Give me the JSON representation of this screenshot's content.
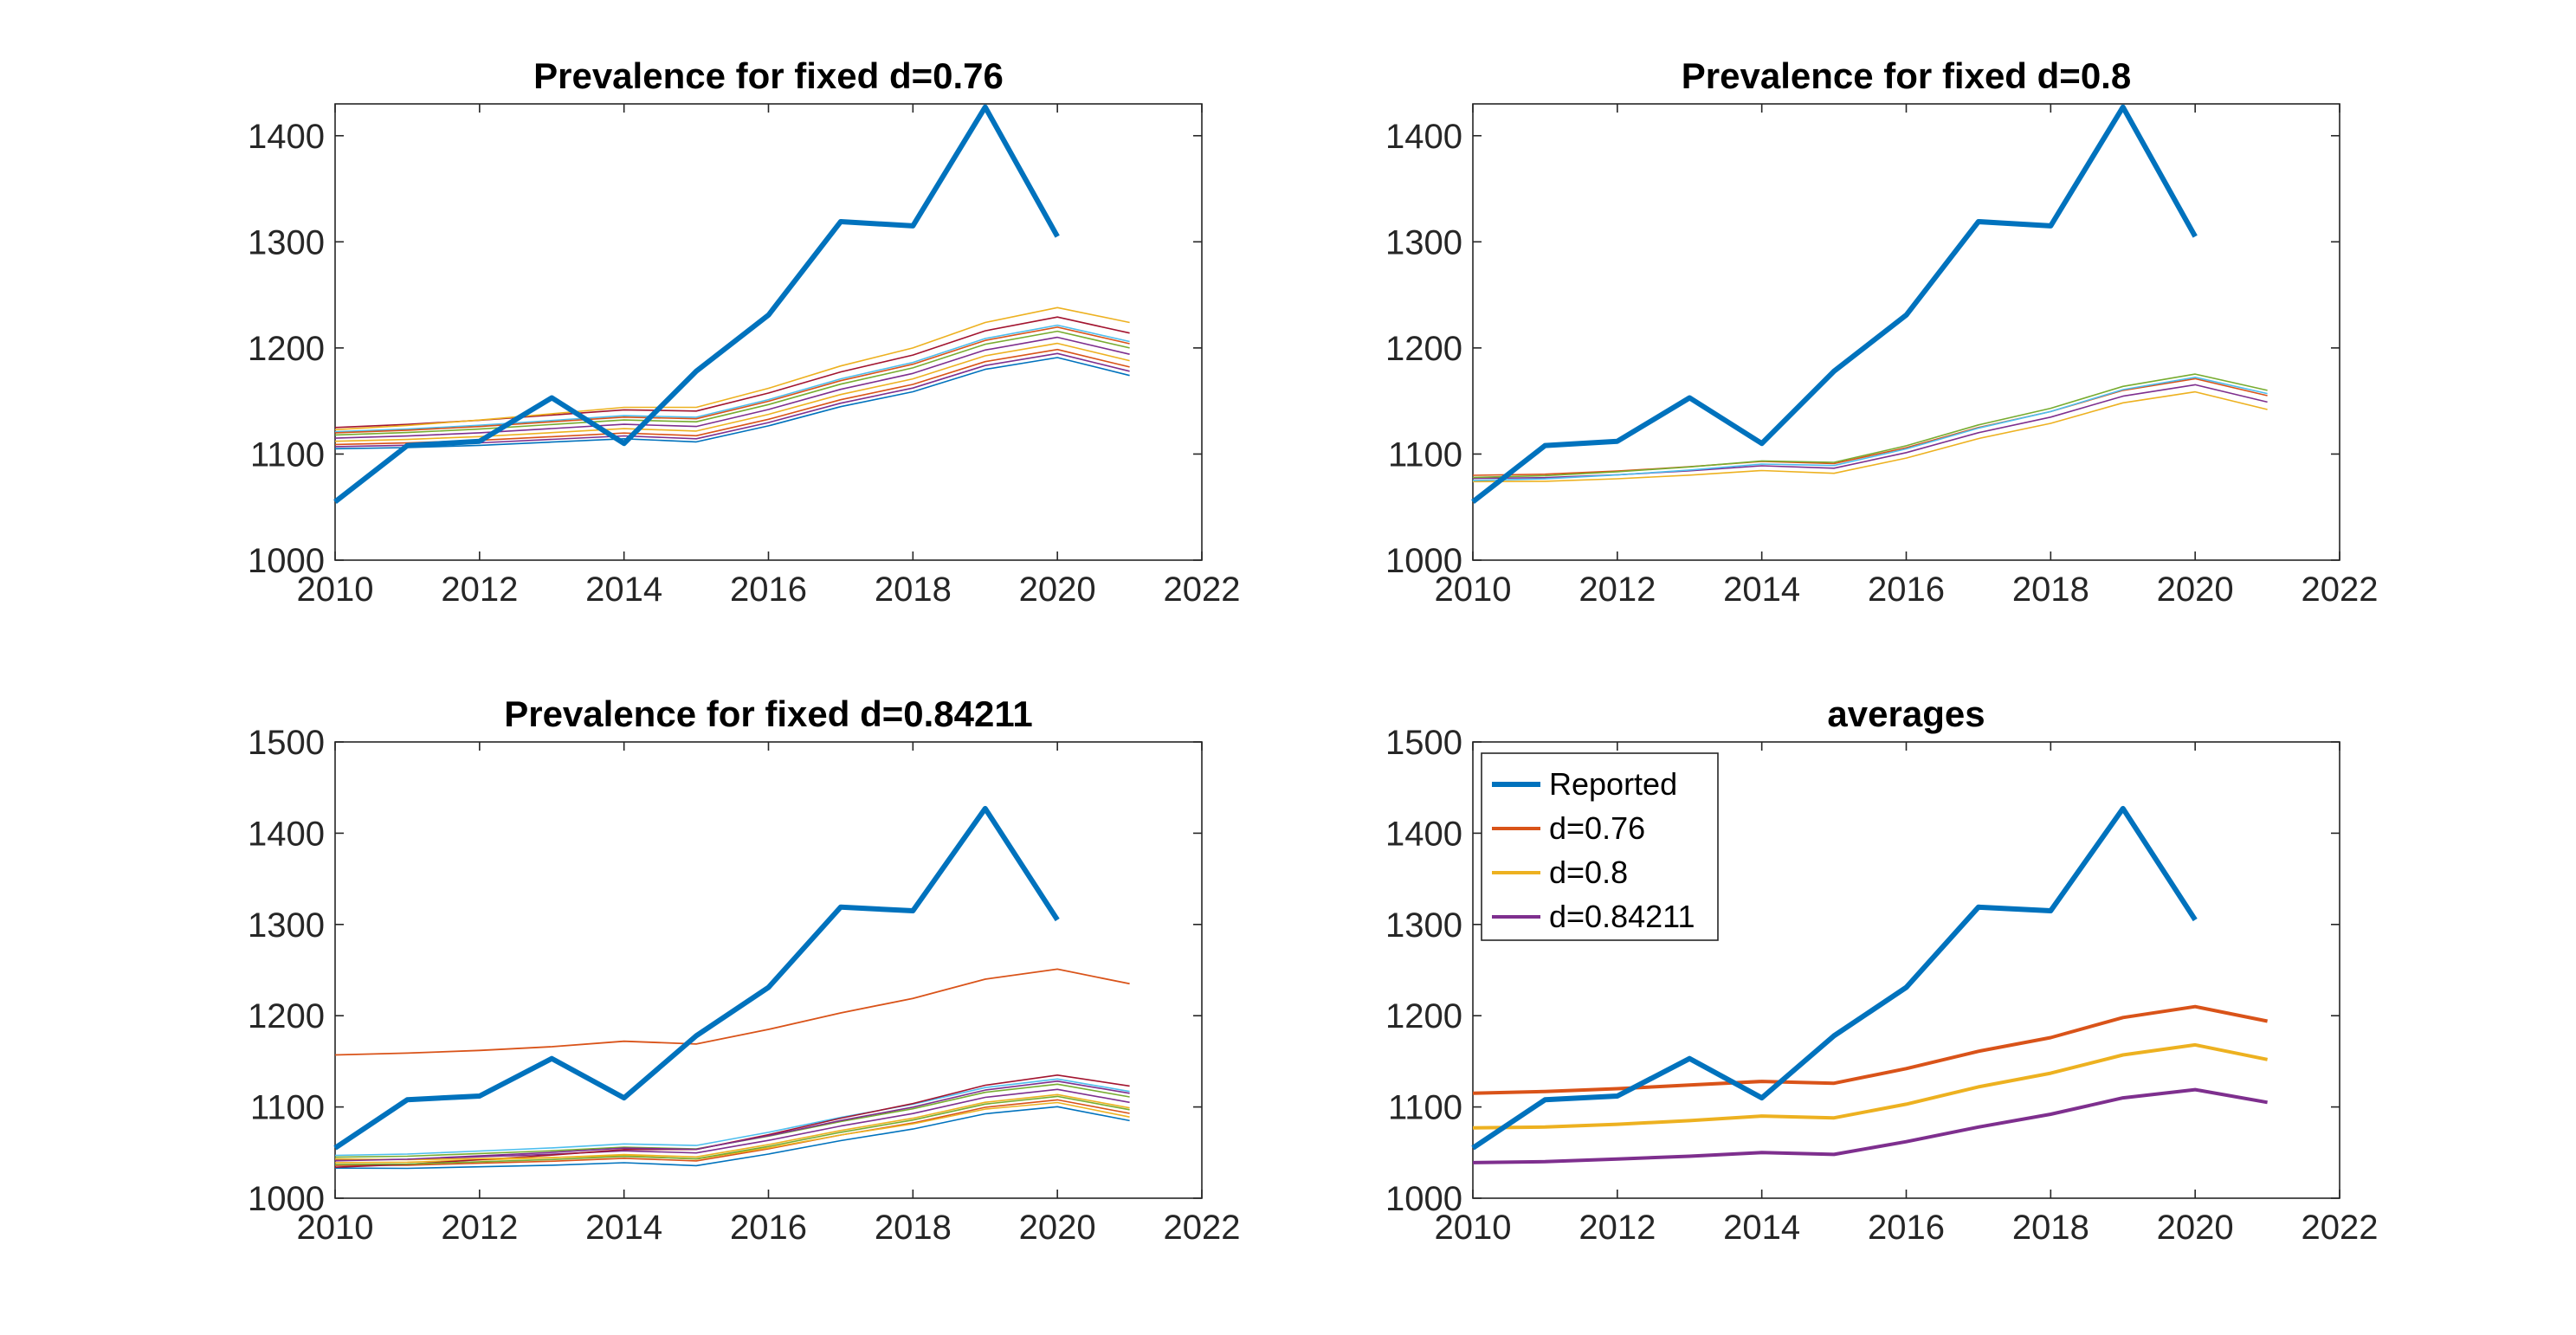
{
  "chart_data": [
    {
      "type": "line",
      "title": "Prevalence for fixed d=0.76",
      "xlim": [
        2010,
        2022
      ],
      "ylim": [
        1000,
        1430
      ],
      "xticks": [
        2010,
        2012,
        2014,
        2016,
        2018,
        2020,
        2022
      ],
      "yticks": [
        1000,
        1100,
        1200,
        1300,
        1400
      ],
      "grid": false,
      "reported": {
        "name": "Reported",
        "color": "#0072BD",
        "x": [
          2010,
          2011,
          2012,
          2013,
          2014,
          2015,
          2016,
          2017,
          2018,
          2019,
          2020
        ],
        "y": [
          1055,
          1108,
          1112,
          1153,
          1110,
          1178,
          1231,
          1319,
          1315,
          1427,
          1305
        ]
      },
      "ensemble": {
        "x": [
          2010,
          2011,
          2012,
          2013,
          2014,
          2015,
          2016,
          2017,
          2018,
          2019,
          2020,
          2021
        ],
        "base": [
          1115,
          1117,
          1120,
          1124,
          1128,
          1126,
          1142,
          1161,
          1176,
          1198,
          1210,
          1194
        ],
        "offsets_start": [
          -10,
          -6,
          -3,
          0,
          3,
          6,
          10,
          8,
          -8,
          5
        ],
        "offsets_end": [
          -20,
          -12,
          -6,
          0,
          6,
          12,
          20,
          30,
          -16,
          10
        ],
        "colors": [
          "#0072BD",
          "#D95319",
          "#EDB120",
          "#7E2F8E",
          "#77AC30",
          "#4DBEEE",
          "#A2142F",
          "#EDB120",
          "#7E2F8E",
          "#D95319"
        ]
      }
    },
    {
      "type": "line",
      "title": "Prevalence for fixed d=0.8",
      "xlim": [
        2010,
        2022
      ],
      "ylim": [
        1000,
        1430
      ],
      "xticks": [
        2010,
        2012,
        2014,
        2016,
        2018,
        2020,
        2022
      ],
      "yticks": [
        1000,
        1100,
        1200,
        1300,
        1400
      ],
      "grid": false,
      "reported": {
        "name": "Reported",
        "color": "#0072BD",
        "x": [
          2010,
          2011,
          2012,
          2013,
          2014,
          2015,
          2016,
          2017,
          2018,
          2019,
          2020
        ],
        "y": [
          1055,
          1108,
          1112,
          1153,
          1110,
          1178,
          1231,
          1319,
          1315,
          1427,
          1305
        ]
      },
      "ensemble": {
        "x": [
          2010,
          2011,
          2012,
          2013,
          2014,
          2015,
          2016,
          2017,
          2018,
          2019,
          2020,
          2021
        ],
        "base": [
          1077,
          1078,
          1081,
          1085,
          1090,
          1088,
          1103,
          1122,
          1137,
          1157,
          1168,
          1152
        ],
        "offsets_start": [
          -3,
          0,
          3,
          1,
          -2
        ],
        "offsets_end": [
          -10,
          -3,
          3,
          8,
          5
        ],
        "colors": [
          "#EDB120",
          "#7E2F8E",
          "#D95319",
          "#77AC30",
          "#4DBEEE"
        ]
      }
    },
    {
      "type": "line",
      "title": "Prevalence for fixed d=0.84211",
      "xlim": [
        2010,
        2022
      ],
      "ylim": [
        1000,
        1500
      ],
      "xticks": [
        2010,
        2012,
        2014,
        2016,
        2018,
        2020,
        2022
      ],
      "yticks": [
        1000,
        1100,
        1200,
        1300,
        1400,
        1500
      ],
      "grid": false,
      "reported": {
        "name": "Reported",
        "color": "#0072BD",
        "x": [
          2010,
          2011,
          2012,
          2013,
          2014,
          2015,
          2016,
          2017,
          2018,
          2019,
          2020
        ],
        "y": [
          1055,
          1108,
          1112,
          1153,
          1110,
          1178,
          1231,
          1319,
          1315,
          1427,
          1305
        ]
      },
      "ensemble": {
        "x": [
          2010,
          2011,
          2012,
          2013,
          2014,
          2015,
          2016,
          2017,
          2018,
          2019,
          2020,
          2021
        ],
        "base": [
          1039,
          1040,
          1043,
          1046,
          1050,
          1048,
          1062,
          1078,
          1092,
          1110,
          1119,
          1105
        ],
        "offsets_start": [
          -6,
          -3,
          0,
          3,
          6,
          8,
          -5,
          4,
          2,
          -2
        ],
        "offsets_end": [
          -20,
          -12,
          -6,
          0,
          6,
          12,
          18,
          -16,
          10,
          -8
        ],
        "colors": [
          "#0072BD",
          "#D95319",
          "#EDB120",
          "#7E2F8E",
          "#77AC30",
          "#4DBEEE",
          "#A2142F",
          "#EDB120",
          "#7E2F8E",
          "#77AC30"
        ]
      },
      "outlier": {
        "color": "#D95319",
        "x": [
          2010,
          2011,
          2012,
          2013,
          2014,
          2015,
          2016,
          2017,
          2018,
          2019,
          2020,
          2021
        ],
        "y": [
          1157,
          1159,
          1162,
          1166,
          1172,
          1169,
          1185,
          1203,
          1219,
          1240,
          1251,
          1235
        ]
      }
    },
    {
      "type": "line",
      "title": "averages",
      "xlim": [
        2010,
        2022
      ],
      "ylim": [
        1000,
        1500
      ],
      "xticks": [
        2010,
        2012,
        2014,
        2016,
        2018,
        2020,
        2022
      ],
      "yticks": [
        1000,
        1100,
        1200,
        1300,
        1400,
        1500
      ],
      "grid": false,
      "legend_position": "top-left",
      "series": [
        {
          "name": "Reported",
          "color": "#0072BD",
          "x": [
            2010,
            2011,
            2012,
            2013,
            2014,
            2015,
            2016,
            2017,
            2018,
            2019,
            2020
          ],
          "values": [
            1055,
            1108,
            1112,
            1153,
            1110,
            1178,
            1231,
            1319,
            1315,
            1427,
            1305
          ]
        },
        {
          "name": "d=0.76",
          "color": "#D95319",
          "x": [
            2010,
            2011,
            2012,
            2013,
            2014,
            2015,
            2016,
            2017,
            2018,
            2019,
            2020,
            2021
          ],
          "values": [
            1115,
            1117,
            1120,
            1124,
            1128,
            1126,
            1142,
            1161,
            1176,
            1198,
            1210,
            1194
          ]
        },
        {
          "name": "d=0.8",
          "color": "#EDB120",
          "x": [
            2010,
            2011,
            2012,
            2013,
            2014,
            2015,
            2016,
            2017,
            2018,
            2019,
            2020,
            2021
          ],
          "values": [
            1077,
            1078,
            1081,
            1085,
            1090,
            1088,
            1103,
            1122,
            1137,
            1157,
            1168,
            1152
          ]
        },
        {
          "name": "d=0.84211",
          "color": "#7E2F8E",
          "x": [
            2010,
            2011,
            2012,
            2013,
            2014,
            2015,
            2016,
            2017,
            2018,
            2019,
            2020,
            2021
          ],
          "values": [
            1039,
            1040,
            1043,
            1046,
            1050,
            1048,
            1062,
            1078,
            1092,
            1110,
            1119,
            1105
          ]
        }
      ]
    }
  ]
}
